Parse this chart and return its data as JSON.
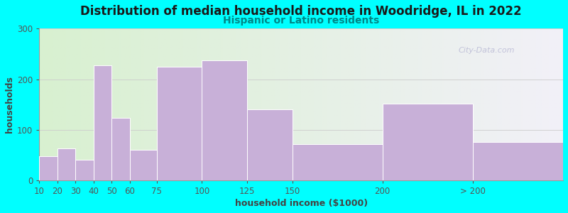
{
  "title": "Distribution of median household income in Woodridge, IL in 2022",
  "subtitle": "Hispanic or Latino residents",
  "xlabel": "household income ($1000)",
  "ylabel": "households",
  "background_color": "#00FFFF",
  "bar_color": "#c8b0d8",
  "bar_edge_color": "#ffffff",
  "title_color": "#1a1a1a",
  "subtitle_color": "#008888",
  "axis_label_color": "#444444",
  "tick_label_color": "#555555",
  "watermark": "City-Data.com",
  "categories": [
    "10",
    "20",
    "30",
    "40",
    "50",
    "60",
    "75",
    "100",
    "125",
    "150",
    "200",
    "> 200"
  ],
  "values": [
    48,
    63,
    40,
    227,
    123,
    60,
    225,
    237,
    140,
    72,
    152,
    75
  ],
  "bar_lefts": [
    10,
    20,
    30,
    40,
    50,
    60,
    75,
    100,
    125,
    150,
    200,
    250
  ],
  "bar_widths_data": [
    10,
    10,
    10,
    10,
    10,
    15,
    25,
    25,
    25,
    50,
    50,
    50
  ],
  "xtick_positions": [
    10,
    20,
    30,
    40,
    50,
    60,
    75,
    100,
    125,
    150,
    200,
    250
  ],
  "xlim": [
    10,
    300
  ],
  "ylim": [
    0,
    300
  ],
  "yticks": [
    0,
    100,
    200,
    300
  ],
  "grid_color": "#cccccc",
  "title_fontsize": 12,
  "subtitle_fontsize": 10,
  "label_fontsize": 9,
  "tick_fontsize": 8.5
}
